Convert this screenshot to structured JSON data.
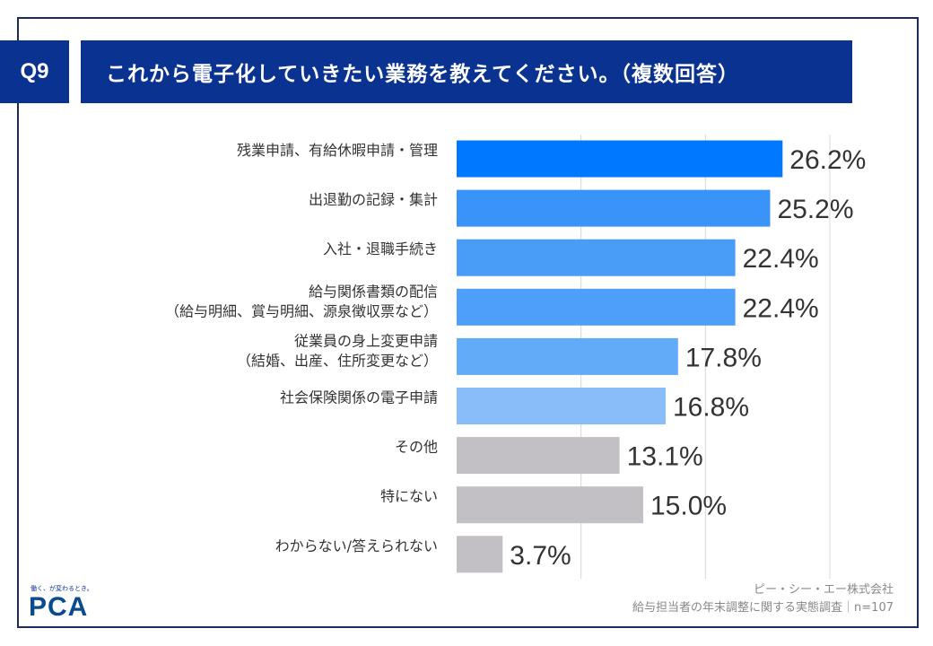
{
  "header": {
    "question_no": "Q9",
    "title": "これから電子化していきたい業務を教えてください。（複数回答）"
  },
  "chart_data": {
    "type": "bar",
    "orientation": "horizontal",
    "categories": [
      "残業申請、有給休暇申請・管理",
      "出退勤の記録・集計",
      "入社・退職手続き",
      "給与関係書類の配信\n（給与明細、賞与明細、源泉徴収票など）",
      "従業員の身上変更申請\n（結婚、出産、住所変更など）",
      "社会保険関係の電子申請",
      "その他",
      "特にない",
      "わからない/答えられない"
    ],
    "values": [
      26.2,
      25.2,
      22.4,
      22.4,
      17.8,
      16.8,
      13.1,
      15.0,
      3.7
    ],
    "value_labels": [
      "26.2%",
      "25.2%",
      "22.4%",
      "22.4%",
      "17.8%",
      "16.8%",
      "13.1%",
      "15.0%",
      "3.7%"
    ],
    "colors": [
      "#0078ff",
      "#3a93f8",
      "#4a9df7",
      "#4d9ff7",
      "#62abf8",
      "#88bdfa",
      "#c2bfc5",
      "#c2bfc5",
      "#c2bfc5"
    ],
    "xlim": [
      0,
      30
    ],
    "gridlines": [
      10,
      20,
      30
    ],
    "grid": true
  },
  "footer": {
    "logo_tagline": "働く、が変わるとき。",
    "logo": "PCA",
    "company": "ピー・シー・エー株式会社",
    "survey": "給与担当者の年末調整に関する実態調査｜n=107"
  }
}
